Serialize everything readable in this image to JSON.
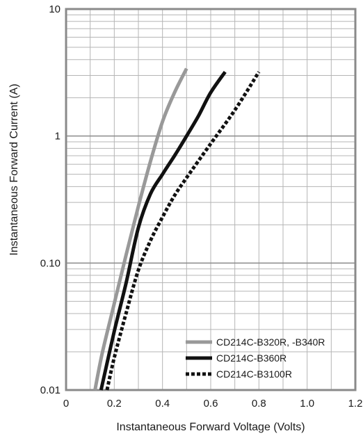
{
  "chart_data": {
    "type": "line",
    "title": "",
    "xlabel": "Instantaneous Forward Voltage (Volts)",
    "ylabel": "Instantaneous Forward Current (A)",
    "xlim": [
      0,
      1.2
    ],
    "ylim": [
      0.01,
      10
    ],
    "y_scale": "log",
    "grid": true,
    "legend_position": "bottom-right",
    "x_ticks": [
      0,
      0.2,
      0.4,
      0.6,
      0.8,
      1.0,
      1.2
    ],
    "x_tick_labels": [
      "0",
      "0.2",
      "0.4",
      "0.6",
      "0.8",
      "1.0",
      "1.2"
    ],
    "y_ticks": [
      0.01,
      0.1,
      1,
      10
    ],
    "y_tick_labels": [
      "0.01",
      "0.10",
      "1",
      "10"
    ],
    "series": [
      {
        "name": "CD214C-B320R, -B340R",
        "color": "#999999",
        "style": "solid",
        "x": [
          0.12,
          0.15,
          0.2,
          0.25,
          0.3,
          0.35,
          0.4,
          0.45,
          0.5
        ],
        "y": [
          0.01,
          0.0195,
          0.048,
          0.118,
          0.28,
          0.63,
          1.3,
          2.2,
          3.4
        ]
      },
      {
        "name": "CD214C-B360R",
        "color": "#111111",
        "style": "solid",
        "x": [
          0.145,
          0.2,
          0.25,
          0.3,
          0.35,
          0.4,
          0.45,
          0.5,
          0.55,
          0.6,
          0.66
        ],
        "y": [
          0.01,
          0.029,
          0.071,
          0.19,
          0.35,
          0.5,
          0.7,
          1.0,
          1.45,
          2.2,
          3.2
        ]
      },
      {
        "name": "CD214C-B3100R",
        "color": "#111111",
        "style": "dotted",
        "x": [
          0.17,
          0.2,
          0.25,
          0.3,
          0.35,
          0.4,
          0.45,
          0.5,
          0.6,
          0.7,
          0.8
        ],
        "y": [
          0.01,
          0.018,
          0.041,
          0.088,
          0.15,
          0.23,
          0.34,
          0.47,
          0.87,
          1.6,
          3.2
        ]
      }
    ]
  }
}
